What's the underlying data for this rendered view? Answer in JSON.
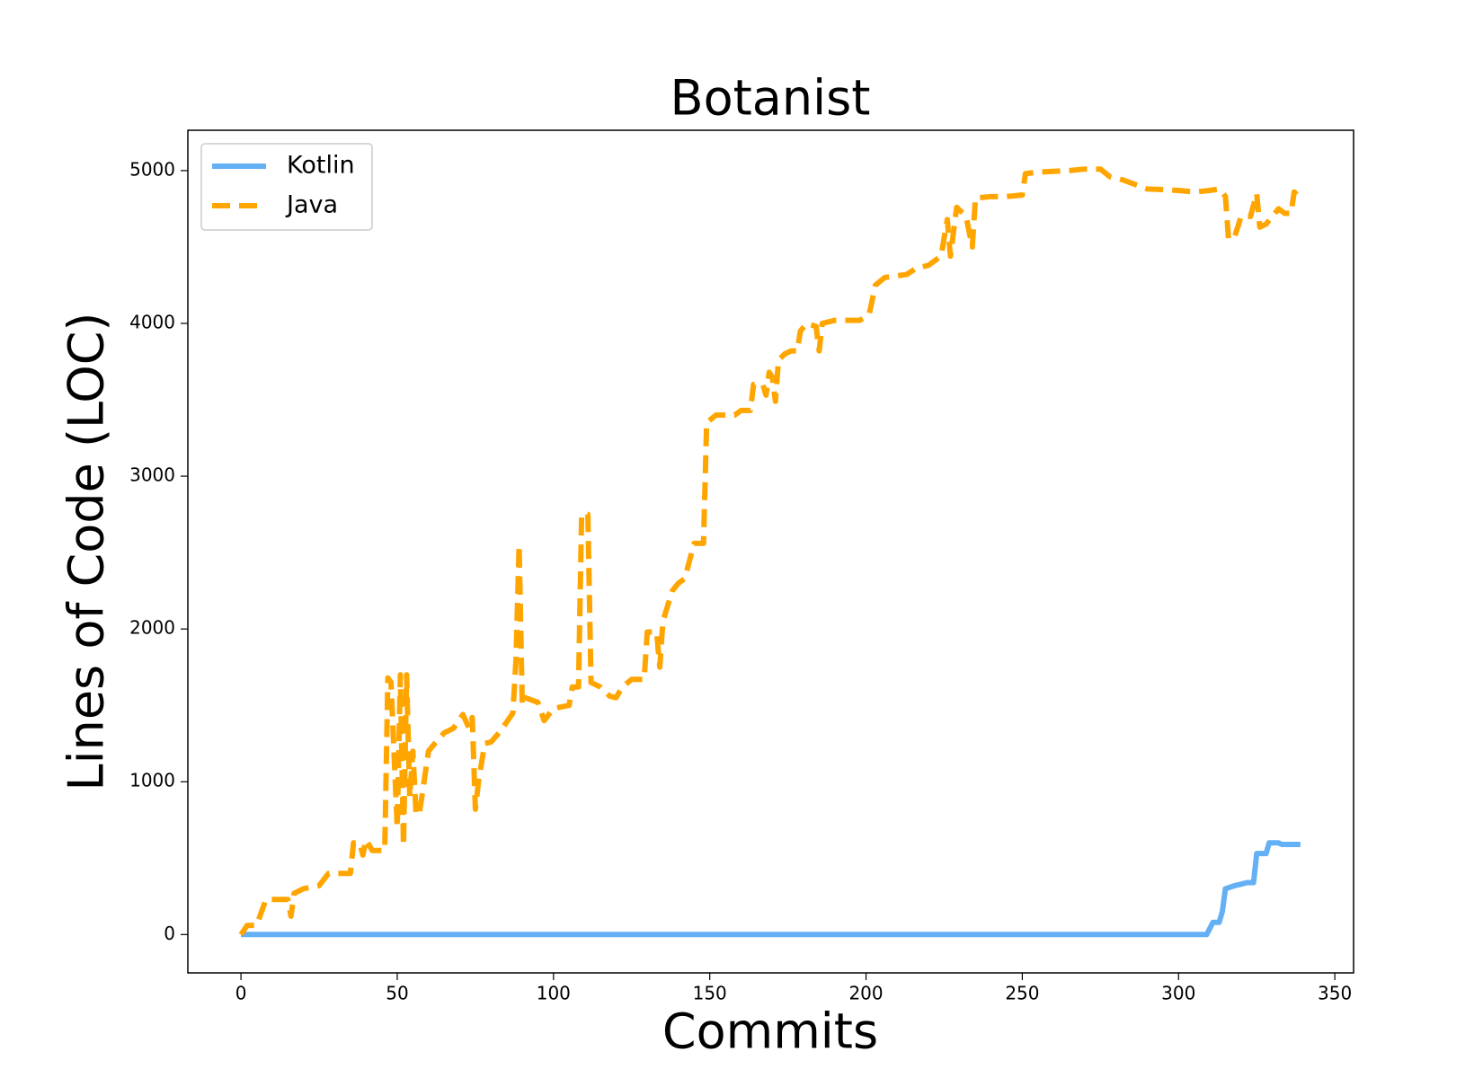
{
  "chart_data": {
    "type": "line",
    "title": "Botanist",
    "x_label": "Commits",
    "y_label": "Lines of Code (LOC)",
    "xlim": [
      -17,
      356
    ],
    "ylim": [
      -251,
      5264
    ],
    "xticks": [
      0,
      50,
      100,
      150,
      200,
      250,
      300,
      350
    ],
    "yticks": [
      0,
      1000,
      2000,
      3000,
      4000,
      5000
    ],
    "grid": false,
    "legend": "upper left",
    "series": [
      {
        "name": "Kotlin",
        "color": "#64b0f4",
        "dash": "solid",
        "x": [
          0,
          309,
          311,
          313,
          314,
          315,
          318,
          320,
          322,
          324,
          325,
          328,
          329,
          332,
          333,
          335,
          339
        ],
        "values": [
          0,
          0,
          80,
          80,
          150,
          300,
          320,
          330,
          340,
          340,
          530,
          530,
          600,
          600,
          590,
          590,
          590
        ]
      },
      {
        "name": "Java",
        "color": "#ffa500",
        "dash": "dashed",
        "x": [
          0,
          2,
          5,
          8,
          12,
          15,
          16,
          17,
          20,
          25,
          28,
          35,
          36,
          38,
          39,
          40,
          42,
          46,
          47,
          48,
          50,
          51,
          52,
          53,
          54,
          55,
          56,
          57,
          60,
          62,
          65,
          68,
          71,
          73,
          74,
          75,
          76,
          78,
          80,
          83,
          86,
          87,
          88,
          89,
          90,
          91,
          95,
          97,
          100,
          105,
          106,
          108,
          109,
          111,
          112,
          115,
          118,
          120,
          122,
          125,
          129,
          130,
          133,
          134,
          135,
          138,
          140,
          142,
          145,
          148,
          149,
          152,
          158,
          160,
          163,
          164,
          167,
          168,
          169,
          170,
          171,
          172,
          174,
          176,
          178,
          179,
          181,
          184,
          185,
          186,
          190,
          198,
          201,
          203,
          206,
          213,
          216,
          220,
          224,
          226,
          227,
          229,
          232,
          234,
          235,
          240,
          245,
          250,
          251,
          255,
          265,
          270,
          275,
          278,
          282,
          290,
          300,
          305,
          310,
          313,
          315,
          316,
          318,
          320,
          323,
          325,
          326,
          328,
          330,
          332,
          334,
          336,
          337,
          339
        ],
        "values": [
          0,
          60,
          60,
          230,
          230,
          230,
          120,
          270,
          300,
          320,
          400,
          400,
          600,
          600,
          520,
          620,
          550,
          550,
          1680,
          1650,
          700,
          1700,
          580,
          1700,
          900,
          1200,
          800,
          780,
          1200,
          1250,
          1320,
          1350,
          1440,
          1350,
          1420,
          820,
          1000,
          1250,
          1260,
          1330,
          1420,
          1450,
          1800,
          2550,
          1500,
          1550,
          1520,
          1400,
          1480,
          1500,
          1620,
          1620,
          2750,
          2750,
          1650,
          1620,
          1560,
          1550,
          1620,
          1670,
          1670,
          1980,
          1980,
          1750,
          2050,
          2250,
          2300,
          2330,
          2560,
          2560,
          3350,
          3400,
          3400,
          3430,
          3430,
          3600,
          3600,
          3530,
          3680,
          3650,
          3490,
          3760,
          3800,
          3820,
          3820,
          3950,
          4000,
          3980,
          3820,
          4000,
          4020,
          4020,
          4060,
          4250,
          4300,
          4320,
          4360,
          4380,
          4440,
          4680,
          4440,
          4760,
          4700,
          4500,
          4820,
          4830,
          4830,
          4840,
          4980,
          4990,
          5000,
          5010,
          5010,
          4960,
          4940,
          4880,
          4870,
          4860,
          4870,
          4880,
          4830,
          4550,
          4570,
          4700,
          4700,
          4850,
          4630,
          4650,
          4700,
          4750,
          4720,
          4720,
          4860,
          4820
        ]
      }
    ]
  }
}
